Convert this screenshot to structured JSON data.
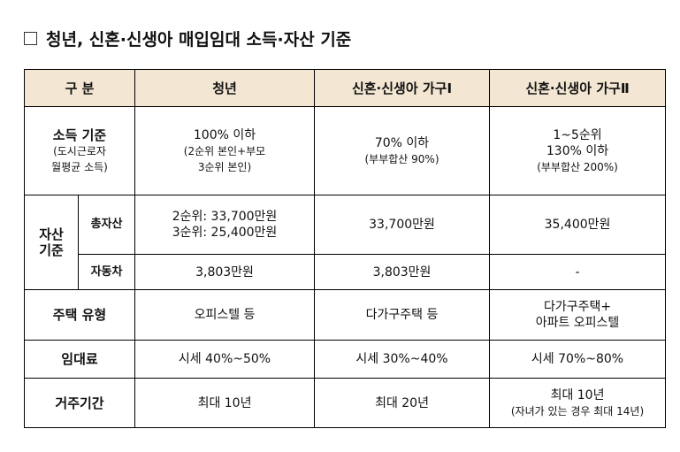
{
  "title": "청년, 신혼·신생아 매입임대 소득·자산 기준",
  "table": {
    "header": [
      "구  분",
      "청년",
      "신혼·신생아 가구Ⅰ",
      "신혼·신생아 가구Ⅱ"
    ],
    "income": {
      "label": [
        "소득 기준",
        "(도시근로자",
        "월평균 소득)"
      ],
      "cells": [
        [
          "100% 이하",
          "(2순위 본인+부모",
          "3순위 본인)"
        ],
        [
          "70% 이하",
          "(부부합산 90%)"
        ],
        [
          "1~5순위",
          "130% 이하",
          "(부부합산 200%)"
        ]
      ]
    },
    "assets": {
      "label": [
        "자산",
        "기준"
      ],
      "rows": [
        {
          "label": "총자산",
          "cells": [
            [
              "2순위: 33,700만원",
              "3순위: 25,400만원"
            ],
            "33,700만원",
            "35,400만원"
          ]
        },
        {
          "label": "자동차",
          "cells": [
            "3,803만원",
            "3,803만원",
            "-"
          ]
        }
      ]
    },
    "housing": {
      "label": "주택 유형",
      "cells": [
        "오피스텔 등",
        "다가구주택 등",
        [
          "다가구주택+",
          "아파트 오피스텔"
        ]
      ]
    },
    "rent": {
      "label": "임대료",
      "cells": [
        "시세 40%~50%",
        "시세 30%~40%",
        "시세 70%~80%"
      ]
    },
    "period": {
      "label": "거주기간",
      "cells": [
        "최대 10년",
        "최대 20년",
        [
          "최대 10년",
          "(자녀가 있는 경우 최대 14년)"
        ]
      ]
    }
  }
}
